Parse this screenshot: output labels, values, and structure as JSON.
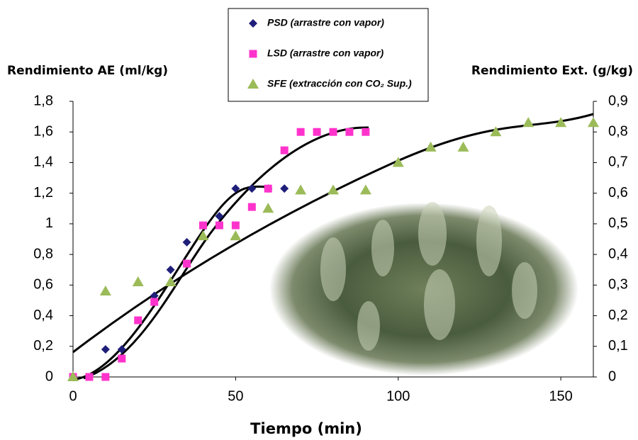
{
  "chart_data": {
    "type": "scatter",
    "y_label": "Rendimiento AE (ml/kg)",
    "y2_label": "Rendimiento Ext. (g/kg)",
    "x_label": "Tiempo (min)",
    "xlim": [
      0,
      160
    ],
    "xticks": [
      0,
      50,
      100,
      150
    ],
    "ylim": [
      0,
      1.8
    ],
    "yticks": [
      0,
      {
        "value": 0.2,
        "label": "0,2"
      },
      {
        "value": 0.4,
        "label": "0,4"
      },
      {
        "value": 0.6,
        "label": "0,6"
      },
      {
        "value": 0.8,
        "label": "0,8"
      },
      1,
      {
        "value": 1.2,
        "label": "1,2"
      },
      {
        "value": 1.4,
        "label": "1,4"
      },
      {
        "value": 1.6,
        "label": "1,6"
      },
      {
        "value": 1.8,
        "label": "1,8"
      }
    ],
    "y2lim": [
      0,
      0.9
    ],
    "y2ticks": [
      0,
      {
        "value": 0.1,
        "label": "0,1"
      },
      {
        "value": 0.2,
        "label": "0,2"
      },
      {
        "value": 0.3,
        "label": "0,3"
      },
      {
        "value": 0.4,
        "label": "0,4"
      },
      {
        "value": 0.5,
        "label": "0,5"
      },
      {
        "value": 0.6,
        "label": "0,6"
      },
      {
        "value": 0.7,
        "label": "0,7"
      },
      {
        "value": 0.8,
        "label": "0,8"
      },
      {
        "value": 0.9,
        "label": "0,9"
      }
    ],
    "series": [
      {
        "name": "PSD (arrastre con vapor)",
        "color": "#1f1f7a",
        "marker": "diamond",
        "x": [
          10,
          15,
          25,
          30,
          35,
          45,
          50,
          55,
          60,
          65
        ],
        "values": [
          0.18,
          0.18,
          0.53,
          0.7,
          0.88,
          1.05,
          1.23,
          1.23,
          1.23,
          1.23
        ]
      },
      {
        "name": "LSD (arrastre con vapor)",
        "color": "#ff33cc",
        "marker": "square",
        "x": [
          0,
          5,
          10,
          15,
          20,
          25,
          35,
          40,
          45,
          50,
          55,
          60,
          65,
          70,
          75,
          80,
          85,
          90
        ],
        "values": [
          0,
          0,
          0,
          0.12,
          0.37,
          0.49,
          0.74,
          0.99,
          0.99,
          0.99,
          1.11,
          1.23,
          1.48,
          1.6,
          1.6,
          1.6,
          1.6,
          1.6
        ]
      },
      {
        "name": "SFE (extracción con CO₂ Sup.)",
        "color": "#9bbb59",
        "marker": "triangle",
        "axis": "y2",
        "x": [
          0,
          10,
          20,
          30,
          40,
          50,
          60,
          70,
          80,
          90,
          100,
          110,
          120,
          130,
          140,
          150,
          160
        ],
        "values": [
          0,
          0.28,
          0.31,
          0.31,
          0.46,
          0.46,
          0.55,
          0.61,
          0.61,
          0.61,
          0.7,
          0.75,
          0.75,
          0.8,
          0.83,
          0.83,
          0.83
        ]
      }
    ]
  }
}
